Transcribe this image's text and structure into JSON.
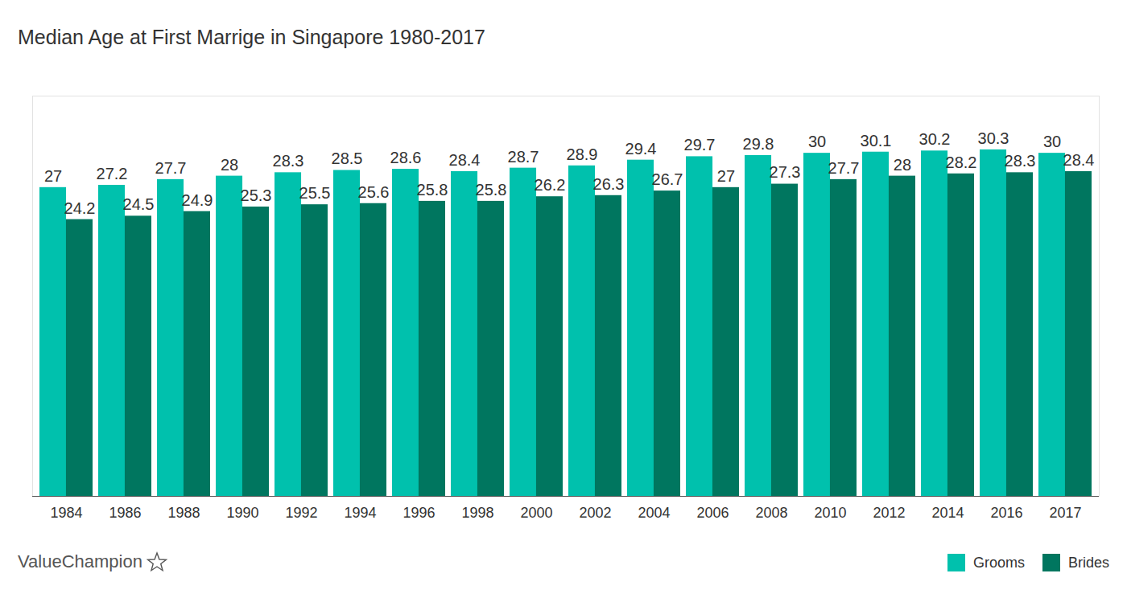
{
  "chart_data": {
    "type": "bar",
    "title": "Median Age at First Marrige in Singapore 1980-2017",
    "categories": [
      "1984",
      "1986",
      "1988",
      "1990",
      "1992",
      "1994",
      "1996",
      "1998",
      "2000",
      "2002",
      "2004",
      "2006",
      "2008",
      "2010",
      "2012",
      "2014",
      "2016",
      "2017"
    ],
    "series": [
      {
        "name": "Grooms",
        "color": "#00c1ad",
        "values": [
          27,
          27.2,
          27.7,
          28,
          28.3,
          28.5,
          28.6,
          28.4,
          28.7,
          28.9,
          29.4,
          29.7,
          29.8,
          30,
          30.1,
          30.2,
          30.3,
          30
        ]
      },
      {
        "name": "Brides",
        "color": "#00765f",
        "values": [
          24.2,
          24.5,
          24.9,
          25.3,
          25.5,
          25.6,
          25.8,
          25.8,
          26.2,
          26.3,
          26.7,
          27,
          27.3,
          27.7,
          28,
          28.2,
          28.3,
          28.4
        ]
      }
    ],
    "ylim": [
      0,
      35
    ],
    "yticks": [],
    "grid": false,
    "legend": "bottom-right",
    "data_labels": true,
    "tick_labels": "x",
    "annotations": [
      "ValueChampion"
    ]
  }
}
